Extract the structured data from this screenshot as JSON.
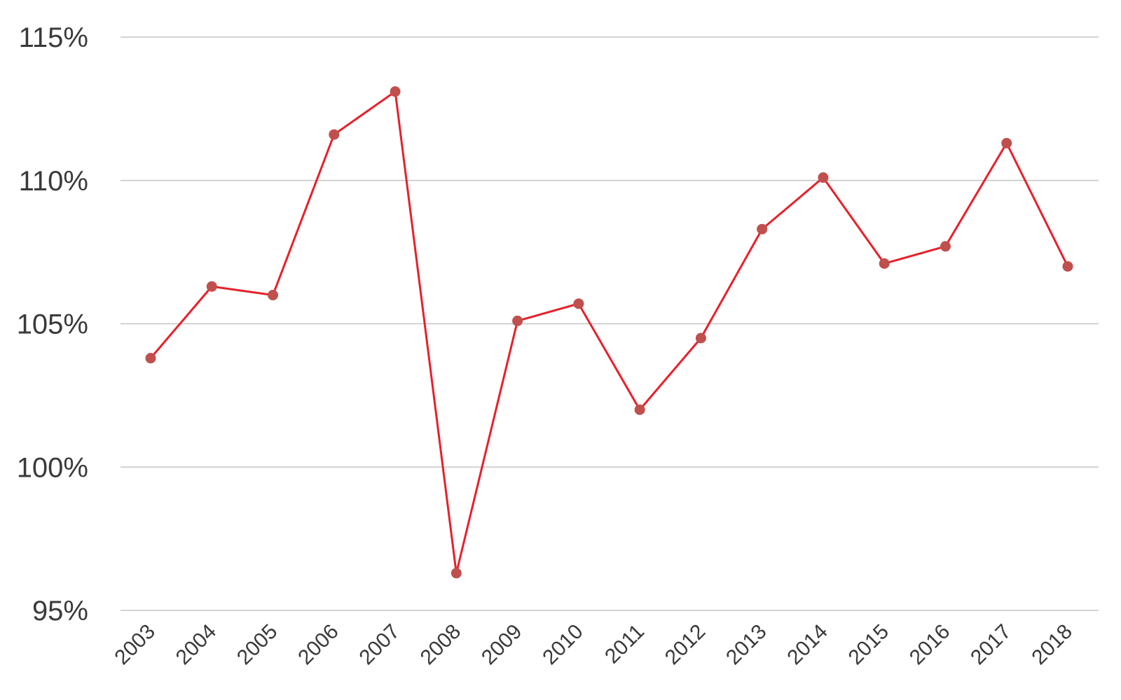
{
  "chart_data": {
    "type": "line",
    "title": "",
    "xlabel": "",
    "ylabel": "",
    "categories": [
      "2003",
      "2004",
      "2005",
      "2006",
      "2007",
      "2008",
      "2009",
      "2010",
      "2011",
      "2012",
      "2013",
      "2014",
      "2015",
      "2016",
      "2017",
      "2018"
    ],
    "series": [
      {
        "values": [
          103.8,
          106.3,
          106.0,
          111.6,
          113.1,
          96.3,
          105.1,
          105.7,
          102.0,
          104.5,
          108.3,
          110.1,
          107.1,
          107.7,
          111.3,
          107.0
        ]
      }
    ],
    "ylim": [
      95,
      115
    ],
    "yticks": [
      95,
      100,
      105,
      110,
      115
    ],
    "ytick_labels": [
      "95%",
      "100%",
      "105%",
      "110%",
      "115%"
    ],
    "grid": true,
    "legend": "none",
    "colors": {
      "line": "#e8202a",
      "marker": "#c0504d",
      "grid": "#c6c6c6",
      "text": "#3a3a3a"
    }
  }
}
